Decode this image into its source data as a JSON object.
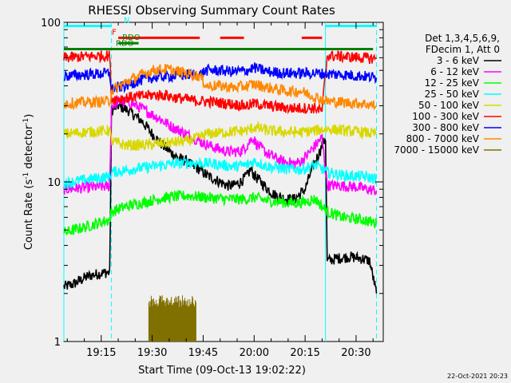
{
  "chart_data": {
    "type": "line",
    "title": "RHESSI Observing Summary Count Rates",
    "xlabel": "Start Time (09-Oct-13 19:02:22)",
    "ylabel": "Count Rate (s",
    "ylabel_sup": "-1",
    "ylabel_tail": " detector",
    "ylabel_close": ")",
    "x_start_minutes": 4,
    "x_end_minutes": 98,
    "ylim": [
      1,
      100
    ],
    "y_scale": "log",
    "x_ticks": [
      {
        "label": "19:15",
        "minute": 15
      },
      {
        "label": "19:30",
        "minute": 30
      },
      {
        "label": "19:45",
        "minute": 45
      },
      {
        "label": "20:00",
        "minute": 60
      },
      {
        "label": "20:15",
        "minute": 75
      },
      {
        "label": "20:30",
        "minute": 90
      }
    ],
    "y_ticks": [
      {
        "label": "1",
        "value": 1
      },
      {
        "label": "10",
        "value": 10
      },
      {
        "label": "100",
        "value": 100
      }
    ],
    "legend_header": [
      "Det 1,3,4,5,6,9,",
      "FDecim 1, Att 0"
    ],
    "legend_placement": "right",
    "series": [
      {
        "name": "3 - 6 keV",
        "color": "#000000",
        "points": [
          [
            4,
            2.2
          ],
          [
            7,
            2.3
          ],
          [
            10,
            2.5
          ],
          [
            12,
            2.6
          ],
          [
            16,
            2.7
          ],
          [
            17.5,
            2.7
          ],
          [
            18,
            28
          ],
          [
            20,
            30
          ],
          [
            23,
            28
          ],
          [
            27,
            24
          ],
          [
            30,
            20
          ],
          [
            33,
            17
          ],
          [
            36,
            15
          ],
          [
            38,
            14
          ],
          [
            40,
            13.5
          ],
          [
            42,
            12.5
          ],
          [
            44,
            12
          ],
          [
            46,
            11
          ],
          [
            48,
            10.5
          ],
          [
            50,
            10
          ],
          [
            52,
            9.5
          ],
          [
            54,
            9.5
          ],
          [
            56,
            10
          ],
          [
            58,
            11
          ],
          [
            59,
            12
          ],
          [
            60,
            11
          ],
          [
            62,
            10
          ],
          [
            64,
            9
          ],
          [
            66,
            8.3
          ],
          [
            68,
            8
          ],
          [
            70,
            7.8
          ],
          [
            72,
            7.8
          ],
          [
            73,
            8.2
          ],
          [
            75,
            9
          ],
          [
            77,
            12
          ],
          [
            79,
            15
          ],
          [
            81,
            19
          ],
          [
            81.5,
            3.2
          ],
          [
            84,
            3.3
          ],
          [
            88,
            3.4
          ],
          [
            92,
            3.3
          ],
          [
            94,
            3.2
          ],
          [
            96,
            2.0
          ]
        ]
      },
      {
        "name": "6 - 12 keV",
        "color": "#ff00ff",
        "points": [
          [
            4,
            9.0
          ],
          [
            10,
            9.2
          ],
          [
            17.5,
            9.4
          ],
          [
            18,
            30
          ],
          [
            20,
            32
          ],
          [
            24,
            31
          ],
          [
            28,
            28
          ],
          [
            32,
            25
          ],
          [
            36,
            22
          ],
          [
            40,
            20
          ],
          [
            44,
            18
          ],
          [
            48,
            16.5
          ],
          [
            52,
            15.5
          ],
          [
            56,
            15.5
          ],
          [
            58,
            17
          ],
          [
            59.5,
            19
          ],
          [
            61,
            17
          ],
          [
            64,
            15
          ],
          [
            68,
            13.5
          ],
          [
            72,
            13
          ],
          [
            74,
            13.5
          ],
          [
            77,
            16
          ],
          [
            80,
            19
          ],
          [
            81.5,
            9.5
          ],
          [
            85,
            9.5
          ],
          [
            90,
            9.3
          ],
          [
            96,
            8.8
          ]
        ]
      },
      {
        "name": "12 - 25 keV",
        "color": "#00ff00",
        "points": [
          [
            4,
            4.8
          ],
          [
            10,
            5.2
          ],
          [
            17.5,
            5.8
          ],
          [
            18,
            6.5
          ],
          [
            22,
            7
          ],
          [
            28,
            7.5
          ],
          [
            34,
            8
          ],
          [
            40,
            8.2
          ],
          [
            46,
            8
          ],
          [
            52,
            7.8
          ],
          [
            58,
            7.8
          ],
          [
            60,
            8
          ],
          [
            64,
            7.6
          ],
          [
            70,
            7.4
          ],
          [
            74,
            7.4
          ],
          [
            78,
            7.8
          ],
          [
            81.5,
            6.5
          ],
          [
            86,
            6
          ],
          [
            92,
            5.8
          ],
          [
            96,
            5.5
          ]
        ]
      },
      {
        "name": "25 - 50 keV",
        "color": "#00ffff",
        "points": [
          [
            4,
            9.8
          ],
          [
            10,
            10.3
          ],
          [
            17.5,
            10.8
          ],
          [
            18,
            11.5
          ],
          [
            24,
            12
          ],
          [
            30,
            12.5
          ],
          [
            36,
            13
          ],
          [
            42,
            13.2
          ],
          [
            48,
            13
          ],
          [
            54,
            12.5
          ],
          [
            58,
            12.8
          ],
          [
            60,
            13.5
          ],
          [
            64,
            12.5
          ],
          [
            70,
            12
          ],
          [
            74,
            12
          ],
          [
            78,
            12.8
          ],
          [
            81.5,
            11.5
          ],
          [
            86,
            11
          ],
          [
            92,
            10.8
          ],
          [
            96,
            10.5
          ]
        ]
      },
      {
        "name": "50 - 100 keV",
        "color": "#d8d800",
        "points": [
          [
            4,
            20
          ],
          [
            10,
            20.5
          ],
          [
            17.5,
            21
          ],
          [
            18,
            18
          ],
          [
            22,
            17
          ],
          [
            28,
            17
          ],
          [
            34,
            17.5
          ],
          [
            40,
            18
          ],
          [
            44,
            19
          ],
          [
            46,
            20
          ],
          [
            52,
            20.5
          ],
          [
            58,
            21
          ],
          [
            60,
            22
          ],
          [
            64,
            21
          ],
          [
            70,
            20.5
          ],
          [
            74,
            20.5
          ],
          [
            78,
            21
          ],
          [
            81.5,
            21.5
          ],
          [
            86,
            21
          ],
          [
            92,
            20.5
          ],
          [
            96,
            20
          ]
        ]
      },
      {
        "name": "100 - 300 keV",
        "color": "#ff0000",
        "points": [
          [
            4,
            60
          ],
          [
            10,
            61
          ],
          [
            17.5,
            62
          ],
          [
            18,
            33
          ],
          [
            24,
            34
          ],
          [
            30,
            35
          ],
          [
            34,
            35
          ],
          [
            36,
            34
          ],
          [
            40,
            33
          ],
          [
            44,
            32
          ],
          [
            46,
            32
          ],
          [
            52,
            31
          ],
          [
            58,
            30
          ],
          [
            60,
            31
          ],
          [
            64,
            30
          ],
          [
            70,
            29
          ],
          [
            74,
            29
          ],
          [
            78,
            29
          ],
          [
            80,
            28
          ],
          [
            81.5,
            62
          ],
          [
            86,
            61
          ],
          [
            92,
            60
          ],
          [
            96,
            59
          ]
        ]
      },
      {
        "name": "300 - 800 keV",
        "color": "#0000ff",
        "points": [
          [
            4,
            46
          ],
          [
            10,
            47
          ],
          [
            17.5,
            48
          ],
          [
            18,
            38
          ],
          [
            22,
            40
          ],
          [
            26,
            43
          ],
          [
            30,
            45
          ],
          [
            34,
            46
          ],
          [
            36,
            46
          ],
          [
            40,
            47
          ],
          [
            44,
            47
          ],
          [
            46,
            50
          ],
          [
            50,
            50
          ],
          [
            54,
            49
          ],
          [
            58,
            50
          ],
          [
            60,
            52
          ],
          [
            64,
            49
          ],
          [
            70,
            48
          ],
          [
            74,
            48
          ],
          [
            78,
            48
          ],
          [
            81.5,
            47.5
          ],
          [
            86,
            47
          ],
          [
            92,
            46
          ],
          [
            96,
            45
          ]
        ]
      },
      {
        "name": "800 - 7000 keV",
        "color": "#ff8800",
        "points": [
          [
            4,
            31
          ],
          [
            10,
            31.5
          ],
          [
            17.5,
            32
          ],
          [
            18,
            37
          ],
          [
            22,
            42
          ],
          [
            26,
            46
          ],
          [
            30,
            50
          ],
          [
            34,
            51
          ],
          [
            38,
            49
          ],
          [
            42,
            47
          ],
          [
            44,
            46
          ],
          [
            46,
            40
          ],
          [
            50,
            40
          ],
          [
            54,
            39
          ],
          [
            58,
            40
          ],
          [
            60,
            41
          ],
          [
            64,
            39
          ],
          [
            70,
            37
          ],
          [
            74,
            37
          ],
          [
            78,
            34
          ],
          [
            80,
            33
          ],
          [
            81.5,
            32
          ],
          [
            86,
            31.5
          ],
          [
            92,
            31
          ],
          [
            96,
            30
          ]
        ]
      },
      {
        "name": "7000 - 15000 keV",
        "color": "#807000",
        "points": [
          [
            29,
            1.6
          ],
          [
            30,
            1.8
          ],
          [
            32,
            1.9
          ],
          [
            34,
            1.95
          ],
          [
            36,
            1.9
          ],
          [
            38,
            1.95
          ],
          [
            40,
            1.9
          ],
          [
            42,
            1.85
          ],
          [
            43,
            1.6
          ]
        ]
      }
    ],
    "state_bars": [
      {
        "label": "N",
        "color": "#00ffff",
        "y_value": 95,
        "segments": [
          [
            4,
            18
          ],
          [
            81,
            96
          ]
        ]
      },
      {
        "label": "F",
        "color": "#ff0000",
        "y_value": 80,
        "segments": [
          [
            20,
            44
          ],
          [
            50,
            57
          ],
          [
            74,
            80
          ]
        ]
      },
      {
        "label": "RDO",
        "color": "#008000",
        "y_value": 68,
        "segments": [
          [
            4,
            95
          ]
        ]
      },
      {
        "label": "RDO",
        "color": "#008000",
        "y_value": 74,
        "segments": [
          [
            20,
            26
          ]
        ]
      }
    ],
    "vertical_lines": [
      {
        "minute": 18,
        "color": "#00ffff",
        "style": "dashed"
      },
      {
        "minute": 81,
        "color": "#00ffff",
        "style": "solid"
      },
      {
        "minute": 96,
        "color": "#00ffff",
        "style": "dashed"
      },
      {
        "minute": 4,
        "color": "#00ffff",
        "style": "solid"
      }
    ],
    "footer_date": "22-Oct-2021 20:23"
  }
}
